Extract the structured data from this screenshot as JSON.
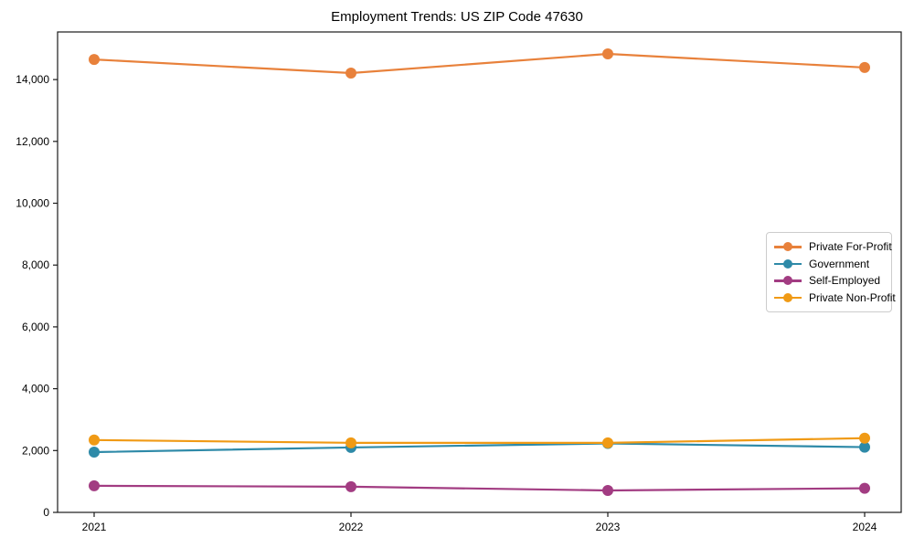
{
  "page": {
    "title": "Employment Trends: US ZIP Code 47630"
  },
  "colors": {
    "background": "#ffffff",
    "frame": "#1a1a1a",
    "tick_text": "#000000",
    "legend_border": "#cccccc"
  },
  "chart_data": {
    "type": "line",
    "title": "Employment Trends: US ZIP Code 47630",
    "xlabel": "",
    "ylabel": "",
    "grid": false,
    "legend_position": "center-right",
    "x": [
      2021,
      2022,
      2023,
      2024
    ],
    "x_tick_labels": [
      "2021",
      "2022",
      "2023",
      "2024"
    ],
    "ylim": [
      0,
      15540
    ],
    "yticks": [
      {
        "value": 0,
        "label": "0"
      },
      {
        "value": 2000,
        "label": "2,000"
      },
      {
        "value": 4000,
        "label": "4,000"
      },
      {
        "value": 6000,
        "label": "6,000"
      },
      {
        "value": 8000,
        "label": "8,000"
      },
      {
        "value": 10000,
        "label": "10,000"
      },
      {
        "value": 12000,
        "label": "12,000"
      },
      {
        "value": 14000,
        "label": "14,000"
      }
    ],
    "series": [
      {
        "name": "Private For-Profit",
        "slug": "private-for-profit",
        "color": "#E8813B",
        "values": [
          14650,
          14210,
          14830,
          14390
        ]
      },
      {
        "name": "Government",
        "slug": "government",
        "color": "#2E8AA8",
        "values": [
          1950,
          2100,
          2230,
          2110
        ]
      },
      {
        "name": "Self-Employed",
        "slug": "self-employed",
        "color": "#A23C82",
        "values": [
          860,
          830,
          710,
          780
        ]
      },
      {
        "name": "Private Non-Profit",
        "slug": "private-non-profit",
        "color": "#F09A15",
        "values": [
          2340,
          2250,
          2250,
          2400
        ]
      }
    ]
  }
}
